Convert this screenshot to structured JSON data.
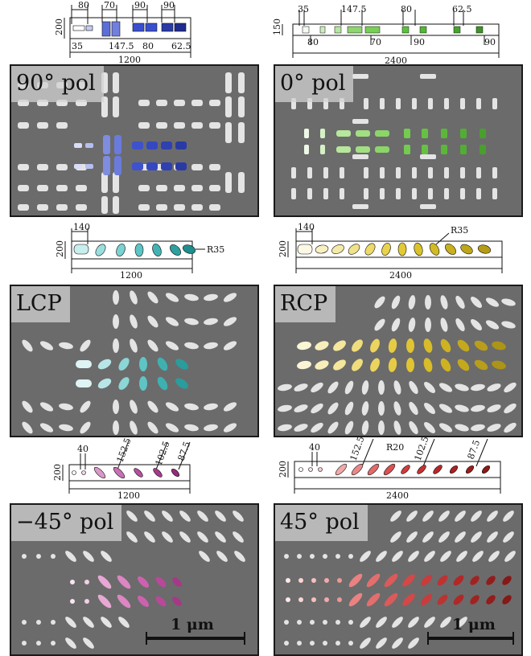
{
  "rows": [
    {
      "left": {
        "label": "90° pol",
        "dims": [
          "80",
          "70",
          "90",
          "90",
          "35",
          "147.5",
          "80",
          "62.5",
          "200",
          "1200"
        ],
        "color": "#3a4fd0"
      },
      "right": {
        "label": "0° pol",
        "dims": [
          "35",
          "147.5",
          "80",
          "62.5",
          "80",
          "70",
          "90",
          "90",
          "150",
          "2400"
        ],
        "color": "#56c23a"
      }
    },
    {
      "left": {
        "label": "LCP",
        "dims": [
          "140",
          "200",
          "R35",
          "1200"
        ],
        "color": "#3ab8b8"
      },
      "right": {
        "label": "RCP",
        "dims": [
          "140",
          "R35",
          "200",
          "2400"
        ],
        "color": "#e0d42a"
      }
    },
    {
      "left": {
        "label": "−45° pol",
        "dims": [
          "40",
          "152.5",
          "102.5",
          "87.5",
          "200",
          "1200"
        ],
        "color": "#b8389a"
      },
      "right": {
        "label": "45° pol",
        "dims": [
          "40",
          "152.5",
          "R20",
          "102.5",
          "87.5",
          "200",
          "2400"
        ],
        "color": "#d83a3a"
      }
    }
  ],
  "scalebar": "1 μm",
  "colors": {
    "frame": "#1a1a1a",
    "sem_bg": "#6b6b6b",
    "pillar": "#e6e6e6"
  }
}
